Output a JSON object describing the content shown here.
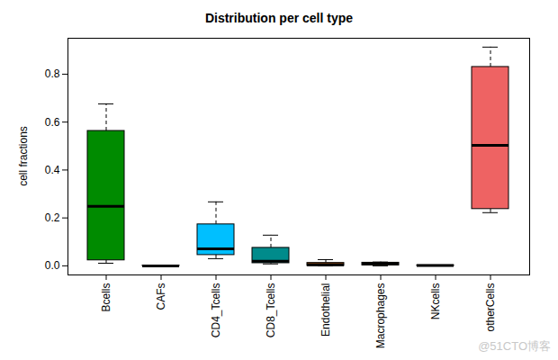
{
  "chart_data": {
    "type": "box",
    "title": "Distribution per cell type",
    "y_label": "cell fractions",
    "categories": [
      "Bcells",
      "CAFs",
      "CD4_Tcells",
      "CD8_Tcells",
      "Endothelial",
      "Macrophages",
      "NKcells",
      "otherCells"
    ],
    "min": [
      0.011,
      0.0,
      0.03,
      0.008,
      0.0,
      0.0,
      0.0,
      0.222
    ],
    "q1": [
      0.023,
      0.0,
      0.045,
      0.011,
      0.0,
      0.002,
      0.0,
      0.237
    ],
    "median": [
      0.248,
      0.0,
      0.071,
      0.019,
      0.004,
      0.009,
      0.001,
      0.503
    ],
    "q3": [
      0.563,
      0.001,
      0.173,
      0.075,
      0.012,
      0.013,
      0.002,
      0.83
    ],
    "max": [
      0.676,
      0.002,
      0.267,
      0.128,
      0.026,
      0.016,
      0.003,
      0.913
    ],
    "colors": [
      "#008b00",
      "#ff7f00",
      "#00bfff",
      "#008b8b",
      "#8b4513",
      "#ffd700",
      "#9a32cd",
      "#ee6363"
    ],
    "ylim": [
      -0.038,
      0.95
    ],
    "yticks": [
      {
        "value": 0,
        "label": "0.0"
      },
      {
        "value": 0.2,
        "label": "0.2"
      },
      {
        "value": 0.4,
        "label": "0.4"
      },
      {
        "value": 0.6,
        "label": "0.6"
      },
      {
        "value": 0.8,
        "label": "0.8"
      }
    ],
    "annotations": [
      "@51CTO博客"
    ]
  }
}
